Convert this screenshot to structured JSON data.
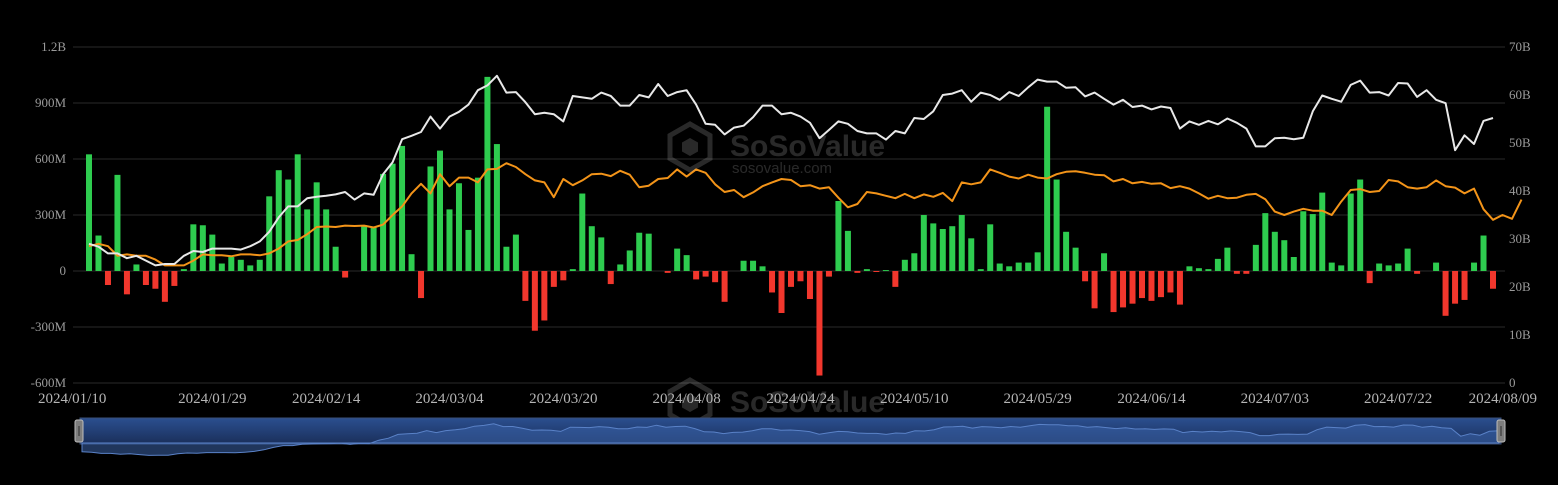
{
  "chart_data": {
    "type": "bar",
    "grid": true,
    "left_axis": {
      "ticks": [
        "-600M",
        "-300M",
        "0",
        "300M",
        "600M",
        "900M",
        "1.2B"
      ],
      "ylim": [
        -600000000,
        1200000000
      ]
    },
    "right_axis": {
      "ticks": [
        "0",
        "10B",
        "20B",
        "30B",
        "40B",
        "50B",
        "60B",
        "70B"
      ],
      "ylim": [
        0,
        70000000000
      ]
    },
    "x_tick_labels": [
      "2024/01/10",
      "2024/01/29",
      "2024/02/14",
      "2024/03/04",
      "2024/03/20",
      "2024/04/08",
      "2024/04/24",
      "2024/05/10",
      "2024/05/29",
      "2024/06/14",
      "2024/07/03",
      "2024/07/22",
      "2024/08/09"
    ],
    "x_tick_index": [
      0,
      13,
      25,
      38,
      50,
      63,
      75,
      87,
      100,
      112,
      125,
      138,
      150
    ],
    "colors": {
      "positive_bar": "#2ecc4f",
      "negative_bar": "#f2372d",
      "white_line": "#e8e8e8",
      "orange_line": "#f39419",
      "grid": "#2a2a2a",
      "slider_fill": "#1f3a6b",
      "slider_line": "#4a6fb0"
    },
    "series": [
      {
        "type": "bar",
        "axis": "left",
        "values": [
          625,
          190,
          -75,
          515,
          -125,
          35,
          -75,
          -95,
          -165,
          -80,
          10,
          250,
          245,
          195,
          40,
          75,
          60,
          30,
          60,
          400,
          540,
          490,
          625,
          330,
          475,
          330,
          130,
          -35,
          0,
          245,
          235,
          520,
          575,
          670,
          90,
          -145,
          560,
          645,
          330,
          470,
          220,
          500,
          1040,
          680,
          130,
          195,
          -160,
          -320,
          -265,
          -85,
          -50,
          10,
          415,
          240,
          180,
          -70,
          35,
          110,
          205,
          200,
          0,
          -10,
          120,
          85,
          -45,
          -30,
          -60,
          -165,
          0,
          55,
          55,
          25,
          -115,
          -225,
          -85,
          -55,
          -150,
          -560,
          -30,
          375,
          215,
          -10,
          10,
          -5,
          5,
          -85,
          60,
          95,
          300,
          255,
          225,
          240,
          300,
          175,
          10,
          250,
          40,
          25,
          45,
          45,
          100,
          880,
          490,
          210,
          125,
          -55,
          -200,
          95,
          -220,
          -195,
          -175,
          -145,
          -160,
          -140,
          -115,
          -180,
          25,
          15,
          10,
          65,
          125,
          -15,
          -15,
          140,
          310,
          210,
          165,
          75,
          320,
          305,
          420,
          45,
          30,
          415,
          490,
          -65,
          40,
          30,
          40,
          120,
          -15,
          0,
          45,
          -240,
          -175,
          -155,
          45,
          190,
          -95
        ]
      },
      {
        "type": "line",
        "axis": "right",
        "color": "#e8e8e8",
        "values": [
          29,
          28.4,
          27,
          27,
          26,
          26.5,
          25.5,
          24.5,
          24.8,
          24.8,
          26.5,
          27.5,
          27.3,
          28,
          28,
          28,
          27.8,
          28.5,
          29.5,
          31.5,
          34.5,
          36.8,
          36.8,
          38.5,
          38.8,
          39,
          39.3,
          39.8,
          38.2,
          39.5,
          39.2,
          43.5,
          46,
          50.8,
          51.5,
          52.3,
          55.5,
          53,
          55.5,
          56.5,
          58,
          61,
          62,
          64,
          60.5,
          60.6,
          58.5,
          56,
          56.3,
          56,
          54.5,
          59.8,
          59.5,
          59.2,
          60.5,
          59.8,
          57.8,
          57.8,
          60,
          59.5,
          62.3,
          59.8,
          60.6,
          61,
          58,
          54,
          53.8,
          51.8,
          53.2,
          53.6,
          55.4,
          57.8,
          57.8,
          56,
          56.3,
          55.5,
          54.2,
          51,
          52.7,
          54.5,
          54,
          52.5,
          52,
          52,
          50.7,
          52.5,
          52,
          55.2,
          55,
          56.6,
          60,
          60.3,
          61,
          58.6,
          60.5,
          60,
          59,
          60.6,
          59.8,
          61.6,
          63.2,
          62.8,
          62.8,
          61.5,
          61.6,
          59.7,
          60.5,
          59.2,
          58,
          59,
          57.5,
          57.8,
          57,
          57.6,
          57.3,
          53,
          54.5,
          53.8,
          54.6,
          53.9,
          55.1,
          54.2,
          53,
          49.3,
          49.3,
          51,
          51.1,
          50.8,
          51.1,
          56.6,
          59.9,
          59.2,
          58.6,
          62.1,
          63,
          60.5,
          60.6,
          59.9,
          62.5,
          62.4,
          59.6,
          61,
          59,
          58.3,
          48.5,
          51.6,
          49.8,
          54.6,
          55.2
        ]
      },
      {
        "type": "line",
        "axis": "right",
        "color": "#f39419",
        "values": [
          28.5,
          29,
          28.5,
          26.5,
          26.8,
          26.5,
          26.5,
          25.7,
          24.5,
          24.5,
          24.5,
          25.5,
          26.8,
          26.6,
          26.6,
          26.4,
          26.8,
          26.8,
          26.6,
          27,
          28,
          29.5,
          29.8,
          31,
          32.5,
          32.6,
          32.5,
          32.8,
          32.7,
          32.8,
          32.4,
          33,
          35,
          36.8,
          39.5,
          41.5,
          39.5,
          43.5,
          41,
          42.8,
          42.8,
          41.8,
          44.5,
          44.6,
          45.8,
          45,
          43.5,
          42.2,
          41.8,
          38.7,
          42.5,
          41.2,
          42.2,
          43.5,
          43.6,
          43.1,
          44.2,
          43.4,
          40.8,
          41.1,
          42.5,
          42.7,
          44.5,
          43,
          44.5,
          43.8,
          41.4,
          39.8,
          40.2,
          38.7,
          39.7,
          41,
          41.8,
          42.5,
          42.3,
          41,
          41.2,
          40.5,
          40.8,
          38.6,
          36.6,
          37.3,
          39.8,
          39.5,
          39,
          38.5,
          39.4,
          38.5,
          39.3,
          38.8,
          39.6,
          37.9,
          41.8,
          41.4,
          41.8,
          44.5,
          43.8,
          43,
          42.6,
          43.4,
          42.8,
          42.6,
          43.5,
          44,
          44.1,
          43.8,
          43.4,
          43.3,
          42,
          42.5,
          41.6,
          41.9,
          41.5,
          41.6,
          40.6,
          41,
          40.5,
          39.5,
          38.4,
          39,
          38.5,
          38.6,
          39.2,
          39.4,
          38.3,
          35.7,
          35,
          35.7,
          36.3,
          35.9,
          35.9,
          35,
          37.8,
          40.2,
          40.4,
          39.8,
          40,
          42.3,
          42,
          40.8,
          40.5,
          40.8,
          42.2,
          41,
          40.7,
          39.5,
          40.5,
          36.2,
          34,
          35,
          34.2,
          38.2
        ]
      }
    ]
  },
  "watermark": {
    "brand": "SoSoValue",
    "url": "sosovalue.com"
  }
}
